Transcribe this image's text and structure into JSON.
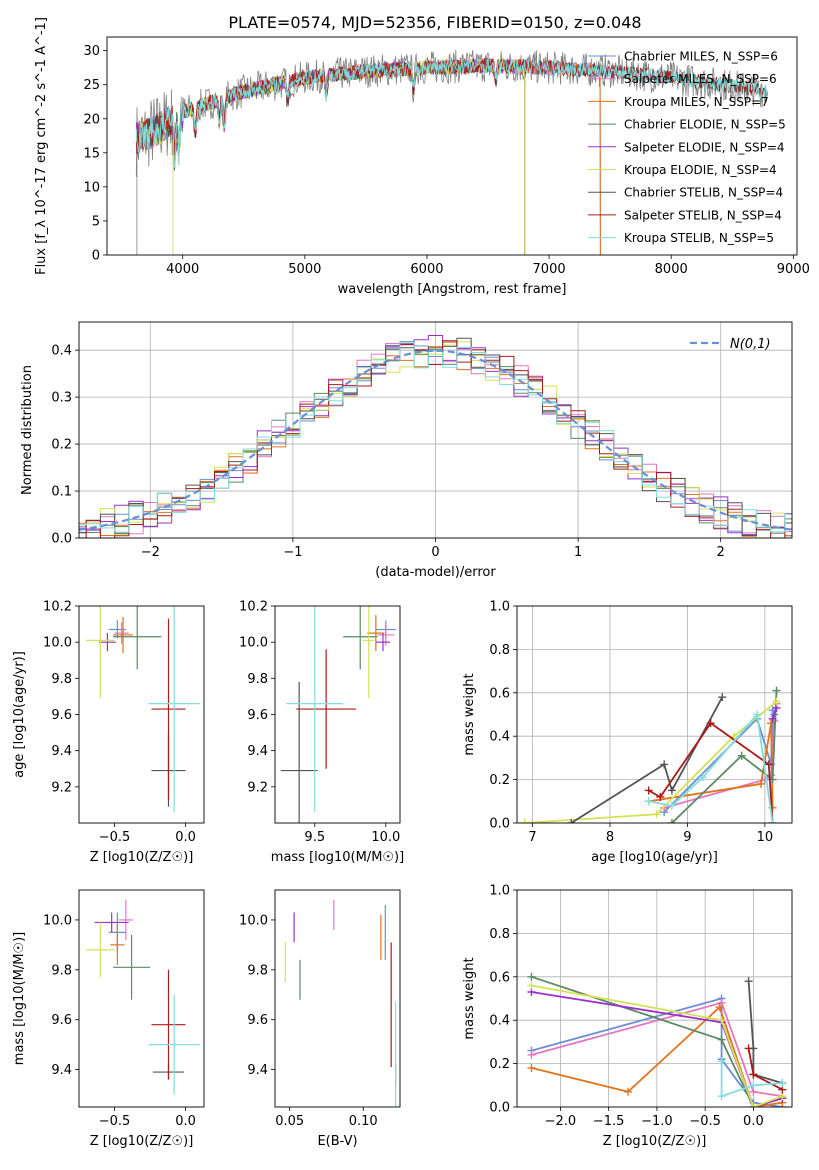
{
  "title": "PLATE=0574, MJD=52356, FIBERID=0150, z=0.048",
  "chart_data": [
    {
      "id": "spectrum",
      "type": "line",
      "xlabel": "wavelength [Angstrom, rest frame]",
      "ylabel": "Flux [f_λ 10^-17 erg cm^-2 s^-1 A^-1]",
      "xlim": [
        3380,
        9030
      ],
      "ylim": [
        0,
        32
      ],
      "xticks": [
        4000,
        5000,
        6000,
        7000,
        8000,
        9000
      ],
      "yticks": [
        0,
        5,
        10,
        15,
        20,
        25,
        30
      ],
      "grid": false,
      "legend_position": "top-right",
      "data_range": [
        3620,
        8790
      ],
      "continuum": {
        "x": [
          3620,
          3800,
          4000,
          4500,
          5000,
          5500,
          6000,
          6500,
          7000,
          7500,
          8000,
          8500,
          8790
        ],
        "y": [
          17,
          18.5,
          21,
          24,
          26,
          27,
          27.5,
          27.8,
          27.5,
          27,
          26,
          24.8,
          24
        ]
      },
      "series": [
        {
          "name": "Chabrier MILES, N_SSP=6",
          "color": "#6a8fd4",
          "end": 7420
        },
        {
          "name": "Salpeter MILES, N_SSP=6",
          "color": "#e377c2",
          "end": 7420
        },
        {
          "name": "Kroupa MILES, N_SSP=7",
          "color": "#e0731c",
          "end": 7420
        },
        {
          "name": "Chabrier ELODIE, N_SSP=5",
          "color": "#5b8a64",
          "end": 6800
        },
        {
          "name": "Salpeter ELODIE, N_SSP=4",
          "color": "#9b30c9",
          "end": 6800
        },
        {
          "name": "Kroupa ELODIE, N_SSP=4",
          "color": "#d4e157",
          "end": 6800
        },
        {
          "name": "Chabrier STELIB, N_SSP=4",
          "color": "#555555",
          "end": 8790
        },
        {
          "name": "Salpeter STELIB, N_SSP=4",
          "color": "#a81c1c",
          "end": 8790
        },
        {
          "name": "Kroupa STELIB, N_SSP=5",
          "color": "#80dede",
          "end": 8790
        }
      ],
      "observed_color": "#808080"
    },
    {
      "id": "residuals",
      "type": "line",
      "xlabel": "(data-model)/error",
      "ylabel": "Normed distribution",
      "xlim": [
        -2.5,
        2.5
      ],
      "ylim": [
        0,
        0.46
      ],
      "xticks": [
        -2,
        -1,
        0,
        1,
        2
      ],
      "yticks": [
        0.0,
        0.1,
        0.2,
        0.3,
        0.4
      ],
      "grid": true,
      "legend": "N(0,1)",
      "legend_position": "top-right",
      "bin_width": 0.1,
      "normal": {
        "mu": 0,
        "sigma": 1,
        "color": "#6a8fd4"
      }
    },
    {
      "id": "age_vs_Z",
      "type": "scatter",
      "xlabel": "Z [log10(Z/Z☉)]",
      "ylabel": "age [log10(age/yr)]",
      "xlim": [
        -0.75,
        0.13
      ],
      "ylim": [
        9.0,
        10.2
      ],
      "xticks": [
        -0.5,
        0.0
      ],
      "yticks": [
        9.2,
        9.4,
        9.6,
        9.8,
        10.0,
        10.2
      ],
      "points": [
        {
          "x": -0.48,
          "xerr": 0.06,
          "y": 10.07,
          "yerr": 0.05,
          "color": "#6a8fd4"
        },
        {
          "x": -0.45,
          "xerr": 0.05,
          "y": 10.05,
          "yerr": 0.06,
          "color": "#e377c2"
        },
        {
          "x": -0.44,
          "xerr": 0.07,
          "y": 10.04,
          "yerr": 0.1,
          "color": "#e0731c"
        },
        {
          "x": -0.34,
          "xerr": 0.17,
          "y": 10.03,
          "yerr": 0.18,
          "color": "#5b8a64"
        },
        {
          "x": -0.55,
          "xerr": 0.06,
          "y": 10.0,
          "yerr": 0.05,
          "color": "#9b30c9"
        },
        {
          "x": -0.6,
          "xerr": 0.1,
          "y": 10.01,
          "yerr": 0.32,
          "color": "#d4e157"
        },
        {
          "x": -0.12,
          "xerr": 0.12,
          "y": 9.29,
          "yerr": 0.2,
          "color": "#555555"
        },
        {
          "x": -0.12,
          "xerr": 0.12,
          "y": 9.63,
          "yerr": 0.5,
          "color": "#a81c1c"
        },
        {
          "x": -0.08,
          "xerr": 0.18,
          "y": 9.66,
          "yerr": 0.6,
          "color": "#80dede"
        }
      ]
    },
    {
      "id": "age_vs_mass",
      "type": "scatter",
      "xlabel": "mass [log10(M/M☉)]",
      "ylabel": "",
      "xlim": [
        9.22,
        10.1
      ],
      "ylim": [
        9.0,
        10.2
      ],
      "xticks": [
        9.5,
        10.0
      ],
      "yticks": [
        9.2,
        9.4,
        9.6,
        9.8,
        10.0,
        10.2
      ],
      "points": [
        {
          "x": 10.0,
          "xerr": 0.07,
          "y": 10.07,
          "yerr": 0.05,
          "color": "#6a8fd4"
        },
        {
          "x": 10.0,
          "xerr": 0.06,
          "y": 10.04,
          "yerr": 0.06,
          "color": "#e377c2"
        },
        {
          "x": 9.93,
          "xerr": 0.06,
          "y": 10.05,
          "yerr": 0.1,
          "color": "#e0731c"
        },
        {
          "x": 9.82,
          "xerr": 0.12,
          "y": 10.03,
          "yerr": 0.18,
          "color": "#5b8a64"
        },
        {
          "x": 9.98,
          "xerr": 0.05,
          "y": 10.0,
          "yerr": 0.05,
          "color": "#9b30c9"
        },
        {
          "x": 9.88,
          "xerr": 0.04,
          "y": 10.01,
          "yerr": 0.32,
          "color": "#d4e157"
        },
        {
          "x": 9.39,
          "xerr": 0.13,
          "y": 9.29,
          "yerr": 0.49,
          "color": "#555555"
        },
        {
          "x": 9.58,
          "xerr": 0.21,
          "y": 9.63,
          "yerr": 0.33,
          "color": "#a81c1c"
        },
        {
          "x": 9.5,
          "xerr": 0.2,
          "y": 9.66,
          "yerr": 0.6,
          "color": "#80dede"
        }
      ]
    },
    {
      "id": "massweight_vs_age",
      "type": "line",
      "xlabel": "age [log10(age/yr)]",
      "ylabel": "mass weight",
      "xlim": [
        6.8,
        10.35
      ],
      "ylim": [
        0,
        1.0
      ],
      "xticks": [
        7,
        8,
        9,
        10
      ],
      "yticks": [
        0.0,
        0.2,
        0.4,
        0.6,
        0.8,
        1.0
      ],
      "grid": true,
      "series": [
        {
          "color": "#6a8fd4",
          "x": [
            8.7,
            9.9,
            10.08,
            10.1,
            10.12
          ],
          "y": [
            0.05,
            0.48,
            0.27,
            0.52,
            0.5
          ]
        },
        {
          "color": "#e377c2",
          "x": [
            8.7,
            10.0,
            10.08,
            10.12,
            10.15
          ],
          "y": [
            0.07,
            0.2,
            0.22,
            0.47,
            0.55
          ]
        },
        {
          "color": "#e0731c",
          "x": [
            8.5,
            9.95,
            10.08,
            10.1
          ],
          "y": [
            0.1,
            0.18,
            0.46,
            0.07
          ]
        },
        {
          "color": "#5b8a64",
          "x": [
            8.8,
            9.7,
            10.1,
            10.15
          ],
          "y": [
            0.0,
            0.31,
            0.2,
            0.61
          ]
        },
        {
          "color": "#9b30c9",
          "x": [
            10.1,
            10.15
          ],
          "y": [
            0.48,
            0.53
          ]
        },
        {
          "color": "#d4e157",
          "x": [
            6.9,
            8.6,
            9.6,
            10.15
          ],
          "y": [
            0.0,
            0.04,
            0.4,
            0.56
          ]
        },
        {
          "color": "#555555",
          "x": [
            7.5,
            8.7,
            8.8,
            9.45
          ],
          "y": [
            0.0,
            0.27,
            0.15,
            0.58
          ]
        },
        {
          "color": "#a81c1c",
          "x": [
            8.5,
            8.65,
            9.3,
            10.05,
            10.1
          ],
          "y": [
            0.15,
            0.12,
            0.46,
            0.27,
            0.0
          ]
        },
        {
          "color": "#80dede",
          "x": [
            8.5,
            8.8,
            9.2,
            9.9,
            10.1
          ],
          "y": [
            0.1,
            0.08,
            0.21,
            0.5,
            0.0
          ]
        }
      ]
    },
    {
      "id": "mass_vs_Z",
      "type": "scatter",
      "xlabel": "Z [log10(Z/Z☉)]",
      "ylabel": "mass [log10(M/M☉)]",
      "xlim": [
        -0.75,
        0.13
      ],
      "ylim": [
        9.25,
        10.12
      ],
      "xticks": [
        -0.5,
        0.0
      ],
      "yticks": [
        9.4,
        9.6,
        9.8,
        10.0
      ],
      "points": [
        {
          "x": -0.48,
          "xerr": 0.06,
          "y": 9.95,
          "yerr": 0.08,
          "color": "#6a8fd4"
        },
        {
          "x": -0.42,
          "xerr": 0.05,
          "y": 10.0,
          "yerr": 0.08,
          "color": "#e377c2"
        },
        {
          "x": -0.48,
          "xerr": 0.05,
          "y": 9.9,
          "yerr": 0.08,
          "color": "#e0731c"
        },
        {
          "x": -0.38,
          "xerr": 0.13,
          "y": 9.81,
          "yerr": 0.13,
          "color": "#5b8a64"
        },
        {
          "x": -0.52,
          "xerr": 0.12,
          "y": 9.99,
          "yerr": 0.04,
          "color": "#9b30c9"
        },
        {
          "x": -0.6,
          "xerr": 0.1,
          "y": 9.88,
          "yerr": 0.11,
          "color": "#d4e157"
        },
        {
          "x": -0.12,
          "xerr": 0.11,
          "y": 9.39,
          "yerr": 0.03,
          "color": "#555555"
        },
        {
          "x": -0.12,
          "xerr": 0.12,
          "y": 9.58,
          "yerr": 0.22,
          "color": "#a81c1c"
        },
        {
          "x": -0.08,
          "xerr": 0.18,
          "y": 9.5,
          "yerr": 0.2,
          "color": "#80dede"
        }
      ]
    },
    {
      "id": "mass_vs_ebv",
      "type": "scatter",
      "xlabel": "E(B-V)",
      "ylabel": "",
      "xlim": [
        0.04,
        0.125
      ],
      "ylim": [
        9.25,
        10.12
      ],
      "xticks": [
        0.05,
        0.1
      ],
      "yticks": [
        9.4,
        9.6,
        9.8,
        10.0
      ],
      "points": [
        {
          "x": 0.115,
          "y": 9.95,
          "yerr": 0.11,
          "color": "#6a8fd4"
        },
        {
          "x": 0.08,
          "y": 10.02,
          "yerr": 0.06,
          "color": "#e377c2"
        },
        {
          "x": 0.112,
          "y": 9.93,
          "yerr": 0.09,
          "color": "#e0731c"
        },
        {
          "x": 0.057,
          "y": 9.76,
          "yerr": 0.08,
          "color": "#5b8a64"
        },
        {
          "x": 0.053,
          "y": 9.97,
          "yerr": 0.06,
          "color": "#9b30c9"
        },
        {
          "x": 0.047,
          "y": 9.83,
          "yerr": 0.08,
          "color": "#d4e157"
        },
        {
          "x": 0.122,
          "y": 9.38,
          "yerr": 0.04,
          "color": "#555555"
        },
        {
          "x": 0.119,
          "y": 9.66,
          "yerr": 0.25,
          "color": "#a81c1c"
        },
        {
          "x": 0.122,
          "y": 9.45,
          "yerr": 0.22,
          "color": "#80dede"
        }
      ]
    },
    {
      "id": "massweight_vs_Z",
      "type": "line",
      "xlabel": "Z [log10(Z/Z☉)]",
      "ylabel": "mass weight",
      "xlim": [
        -2.45,
        0.4
      ],
      "ylim": [
        0,
        1.0
      ],
      "xticks": [
        -2.0,
        -1.5,
        -1.0,
        -0.5,
        0.0
      ],
      "yticks": [
        0.0,
        0.2,
        0.4,
        0.6,
        0.8,
        1.0
      ],
      "grid": true,
      "series": [
        {
          "color": "#6a8fd4",
          "x": [
            -2.3,
            -0.33,
            -0.33,
            0.0,
            0.3
          ],
          "y": [
            0.26,
            0.5,
            0.22,
            0.02,
            0.0
          ]
        },
        {
          "color": "#e377c2",
          "x": [
            -2.3,
            -0.33,
            0.0,
            0.3
          ],
          "y": [
            0.24,
            0.48,
            0.07,
            0.05
          ]
        },
        {
          "color": "#e0731c",
          "x": [
            -2.3,
            -1.3,
            -0.35,
            0.0,
            0.3
          ],
          "y": [
            0.18,
            0.07,
            0.46,
            0.0,
            0.02
          ]
        },
        {
          "color": "#5b8a64",
          "x": [
            -2.3,
            -0.33,
            0.0,
            0.3
          ],
          "y": [
            0.6,
            0.31,
            0.0,
            0.04
          ]
        },
        {
          "color": "#9b30c9",
          "x": [
            -2.3,
            -0.33,
            0.0,
            0.3
          ],
          "y": [
            0.53,
            0.39,
            0.0,
            0.04
          ]
        },
        {
          "color": "#d4e157",
          "x": [
            -2.3,
            -0.33,
            0.0,
            0.3
          ],
          "y": [
            0.56,
            0.4,
            0.0,
            0.05
          ]
        },
        {
          "color": "#555555",
          "x": [
            -0.05,
            0.0,
            0.0,
            0.3
          ],
          "y": [
            0.58,
            0.27,
            0.15,
            0.11
          ]
        },
        {
          "color": "#a81c1c",
          "x": [
            -0.05,
            0.0,
            0.3
          ],
          "y": [
            0.27,
            0.15,
            0.08
          ]
        },
        {
          "color": "#80dede",
          "x": [
            -0.33,
            -0.33,
            0.0,
            0.3
          ],
          "y": [
            0.21,
            0.05,
            0.1,
            0.11
          ]
        }
      ]
    }
  ]
}
